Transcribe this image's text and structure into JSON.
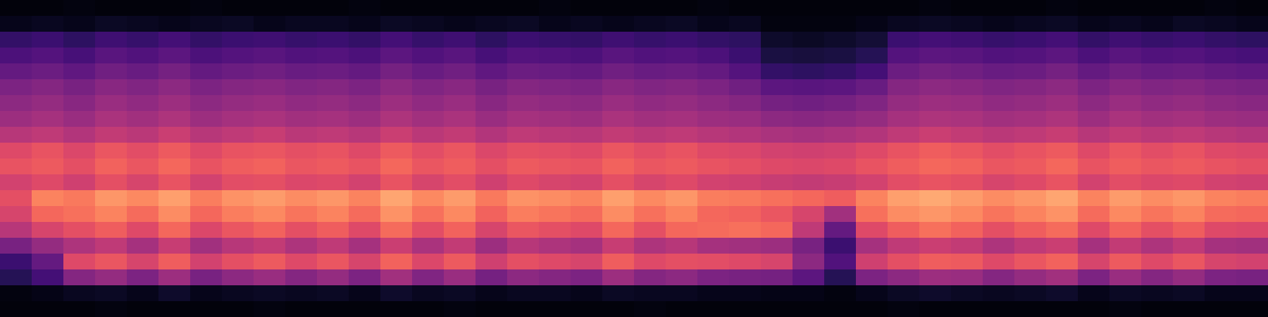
{
  "chart_data": {
    "type": "heatmap",
    "color": "magma",
    "tick_labels": false,
    "zlim": [
      0,
      100
    ],
    "cells": [
      [
        2,
        2,
        3,
        2,
        2,
        2,
        3,
        2,
        2,
        2,
        2,
        3,
        2,
        2,
        2,
        2,
        2,
        3,
        2,
        2,
        2,
        2,
        3,
        2,
        2,
        2,
        2,
        2,
        2,
        3,
        2,
        2,
        2,
        3,
        2,
        2,
        2,
        2,
        3,
        2
      ],
      [
        5,
        6,
        5,
        7,
        6,
        5,
        6,
        7,
        5,
        6,
        6,
        5,
        7,
        6,
        5,
        6,
        7,
        5,
        6,
        5,
        6,
        7,
        5,
        6,
        3,
        3,
        3,
        4,
        6,
        7,
        6,
        5,
        6,
        7,
        5,
        6,
        5,
        7,
        6,
        5
      ],
      [
        18,
        20,
        17,
        21,
        19,
        22,
        18,
        20,
        21,
        19,
        20,
        18,
        22,
        19,
        21,
        17,
        20,
        19,
        18,
        21,
        19,
        20,
        18,
        17,
        8,
        7,
        8,
        10,
        20,
        22,
        21,
        19,
        20,
        22,
        18,
        21,
        19,
        20,
        18,
        17
      ],
      [
        24,
        26,
        23,
        27,
        25,
        28,
        24,
        26,
        27,
        25,
        26,
        24,
        28,
        25,
        27,
        23,
        26,
        25,
        24,
        27,
        25,
        26,
        24,
        20,
        12,
        11,
        12,
        15,
        26,
        28,
        27,
        25,
        26,
        28,
        24,
        27,
        25,
        26,
        24,
        23
      ],
      [
        30,
        32,
        29,
        33,
        31,
        34,
        30,
        32,
        33,
        31,
        32,
        30,
        34,
        31,
        33,
        29,
        32,
        31,
        30,
        33,
        31,
        32,
        30,
        26,
        18,
        17,
        18,
        22,
        32,
        34,
        33,
        31,
        32,
        34,
        30,
        33,
        31,
        32,
        30,
        29
      ],
      [
        36,
        38,
        35,
        39,
        37,
        40,
        36,
        38,
        39,
        37,
        38,
        36,
        40,
        37,
        39,
        35,
        38,
        37,
        36,
        39,
        37,
        38,
        36,
        33,
        28,
        27,
        28,
        31,
        38,
        40,
        39,
        37,
        38,
        40,
        36,
        39,
        37,
        38,
        36,
        35
      ],
      [
        40,
        42,
        39,
        43,
        41,
        44,
        40,
        42,
        43,
        41,
        42,
        40,
        44,
        41,
        43,
        39,
        42,
        41,
        40,
        43,
        41,
        42,
        40,
        38,
        34,
        33,
        34,
        37,
        42,
        44,
        43,
        41,
        42,
        44,
        40,
        43,
        41,
        42,
        40,
        39
      ],
      [
        44,
        46,
        43,
        47,
        45,
        48,
        44,
        46,
        47,
        45,
        46,
        44,
        48,
        45,
        47,
        43,
        46,
        45,
        44,
        47,
        45,
        46,
        44,
        43,
        40,
        39,
        40,
        42,
        46,
        48,
        47,
        45,
        46,
        48,
        44,
        47,
        45,
        46,
        44,
        43
      ],
      [
        50,
        52,
        49,
        53,
        51,
        55,
        50,
        52,
        54,
        51,
        52,
        50,
        55,
        51,
        53,
        49,
        52,
        51,
        50,
        53,
        51,
        52,
        50,
        49,
        47,
        46,
        47,
        49,
        52,
        55,
        53,
        51,
        52,
        54,
        50,
        53,
        51,
        52,
        50,
        49
      ],
      [
        60,
        63,
        59,
        64,
        61,
        65,
        60,
        63,
        64,
        62,
        63,
        60,
        65,
        61,
        64,
        59,
        62,
        61,
        60,
        64,
        61,
        63,
        60,
        59,
        57,
        56,
        57,
        60,
        63,
        66,
        64,
        61,
        63,
        65,
        60,
        64,
        61,
        63,
        60,
        59
      ],
      [
        63,
        65,
        62,
        67,
        64,
        68,
        63,
        66,
        67,
        64,
        65,
        63,
        68,
        64,
        66,
        62,
        65,
        64,
        63,
        67,
        64,
        65,
        63,
        62,
        60,
        59,
        60,
        63,
        66,
        68,
        67,
        64,
        65,
        68,
        63,
        66,
        64,
        65,
        63,
        62
      ],
      [
        57,
        60,
        56,
        62,
        58,
        63,
        57,
        61,
        62,
        59,
        60,
        57,
        63,
        58,
        61,
        56,
        60,
        58,
        57,
        62,
        58,
        60,
        57,
        56,
        54,
        53,
        54,
        57,
        61,
        63,
        62,
        58,
        60,
        63,
        57,
        61,
        59,
        60,
        57,
        56
      ],
      [
        62,
        74,
        72,
        78,
        75,
        80,
        73,
        77,
        79,
        76,
        78,
        74,
        81,
        75,
        79,
        72,
        77,
        76,
        74,
        80,
        75,
        78,
        73,
        72,
        70,
        68,
        66,
        74,
        80,
        82,
        79,
        76,
        78,
        81,
        74,
        79,
        76,
        78,
        74,
        73
      ],
      [
        58,
        68,
        70,
        74,
        69,
        76,
        68,
        73,
        75,
        71,
        74,
        69,
        77,
        70,
        75,
        67,
        73,
        71,
        69,
        76,
        70,
        74,
        68,
        67,
        64,
        58,
        45,
        70,
        76,
        78,
        75,
        71,
        74,
        77,
        69,
        75,
        71,
        74,
        69,
        68
      ],
      [
        50,
        58,
        62,
        66,
        60,
        68,
        59,
        64,
        67,
        62,
        66,
        60,
        69,
        61,
        67,
        58,
        64,
        62,
        60,
        68,
        62,
        68,
        69,
        70,
        68,
        52,
        30,
        60,
        66,
        70,
        67,
        62,
        66,
        69,
        60,
        67,
        62,
        66,
        60,
        59
      ],
      [
        35,
        42,
        48,
        52,
        46,
        54,
        45,
        50,
        53,
        48,
        52,
        46,
        55,
        47,
        53,
        44,
        50,
        48,
        46,
        54,
        48,
        50,
        46,
        45,
        44,
        35,
        20,
        46,
        52,
        55,
        53,
        48,
        52,
        55,
        46,
        53,
        48,
        52,
        46,
        45
      ],
      [
        20,
        30,
        60,
        64,
        58,
        66,
        57,
        62,
        65,
        60,
        64,
        58,
        67,
        59,
        65,
        56,
        62,
        60,
        58,
        66,
        60,
        62,
        61,
        60,
        58,
        40,
        25,
        56,
        62,
        66,
        65,
        60,
        64,
        67,
        58,
        65,
        60,
        64,
        58,
        57
      ],
      [
        15,
        22,
        38,
        42,
        36,
        44,
        35,
        40,
        43,
        38,
        42,
        36,
        45,
        37,
        43,
        34,
        40,
        38,
        36,
        44,
        38,
        40,
        36,
        35,
        34,
        28,
        15,
        36,
        40,
        44,
        43,
        38,
        42,
        45,
        36,
        43,
        38,
        42,
        36,
        35
      ],
      [
        3,
        4,
        6,
        7,
        5,
        8,
        5,
        6,
        7,
        6,
        7,
        5,
        8,
        6,
        7,
        5,
        6,
        6,
        5,
        7,
        6,
        6,
        5,
        5,
        4,
        4,
        3,
        5,
        7,
        8,
        7,
        6,
        7,
        8,
        5,
        7,
        6,
        7,
        5,
        5
      ],
      [
        2,
        2,
        2,
        3,
        2,
        2,
        2,
        2,
        3,
        2,
        2,
        2,
        2,
        2,
        3,
        2,
        2,
        2,
        2,
        2,
        3,
        2,
        2,
        2,
        2,
        2,
        2,
        2,
        3,
        2,
        2,
        2,
        2,
        2,
        2,
        3,
        2,
        2,
        2,
        2
      ]
    ]
  }
}
